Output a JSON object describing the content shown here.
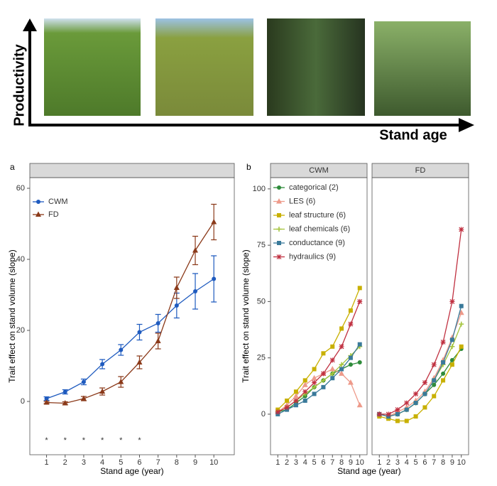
{
  "schematic": {
    "y_label": "Productivity",
    "x_label": "Stand age"
  },
  "chart_data": [
    {
      "type": "line",
      "panel": "a",
      "y_label": "Trait effect on stand volume (slope)",
      "x_label": "Stand age (year)",
      "x": [
        1,
        2,
        3,
        4,
        5,
        6,
        7,
        8,
        9,
        10
      ],
      "xlim": [
        0.1,
        11.1
      ],
      "xticks": [
        1,
        2,
        3,
        4,
        5,
        6,
        7,
        8,
        9,
        10
      ],
      "ylim": [
        -15,
        63
      ],
      "yticks": [
        0,
        20,
        40,
        60
      ],
      "legend": "top-left",
      "significance": [
        "*",
        "*",
        "*",
        "*",
        "*",
        "*",
        null,
        null,
        null,
        null
      ],
      "series": [
        {
          "name": "CWM",
          "color": "#1f5bbf",
          "marker": "circle",
          "values": [
            0.8,
            2.7,
            5.5,
            10.5,
            14.5,
            19.5,
            22,
            27,
            31,
            34.5
          ],
          "errors": [
            0.5,
            0.6,
            0.8,
            1.3,
            1.5,
            2.2,
            2.5,
            3.5,
            5,
            6.5
          ]
        },
        {
          "name": "FD",
          "color": "#8b3a1a",
          "marker": "triangle",
          "values": [
            -0.3,
            -0.5,
            0.8,
            2.8,
            5.5,
            11,
            17,
            32,
            42.5,
            50.5
          ],
          "errors": [
            0.3,
            0.4,
            0.6,
            1,
            1.5,
            1.8,
            2.2,
            3,
            4,
            5
          ]
        }
      ]
    },
    {
      "type": "line",
      "panel": "b",
      "facet": "CWM",
      "y_label": "Trait effect on stand volume (slope)",
      "x_label": "Stand age (year)",
      "x": [
        1,
        2,
        3,
        4,
        5,
        6,
        7,
        8,
        9,
        10
      ],
      "xlim": [
        0.2,
        10.8
      ],
      "xticks": [
        1,
        2,
        3,
        4,
        5,
        6,
        7,
        8,
        9,
        10
      ],
      "ylim": [
        -18,
        105
      ],
      "yticks": [
        0,
        25,
        50,
        75,
        100
      ],
      "legend": "top-left",
      "series": [
        {
          "name": "categorical (2)",
          "color": "#2e8b3a",
          "marker": "circle",
          "values": [
            1,
            2,
            5,
            8,
            12,
            15,
            18,
            20,
            22,
            23
          ]
        },
        {
          "name": "LES (6)",
          "color": "#ee9a8a",
          "marker": "triangle",
          "values": [
            1,
            4,
            8,
            13,
            16,
            18,
            20,
            18,
            14,
            4
          ]
        },
        {
          "name": "leaf structure (6)",
          "color": "#c8b000",
          "marker": "square",
          "values": [
            2,
            6,
            10,
            15,
            20,
            27,
            30,
            38,
            46,
            56
          ]
        },
        {
          "name": "leaf chemicals (6)",
          "color": "#a4c43c",
          "marker": "plus",
          "values": [
            1,
            3,
            6,
            9,
            12,
            15,
            18,
            22,
            26,
            30
          ]
        },
        {
          "name": "conductance (9)",
          "color": "#3a7a9a",
          "marker": "square",
          "values": [
            0,
            2,
            4,
            6,
            9,
            12,
            16,
            20,
            25,
            31
          ]
        },
        {
          "name": "hydraulics (9)",
          "color": "#c03040",
          "marker": "star",
          "values": [
            1,
            3,
            6,
            10,
            14,
            18,
            24,
            30,
            40,
            50
          ]
        }
      ]
    },
    {
      "type": "line",
      "facet": "FD",
      "x": [
        1,
        2,
        3,
        4,
        5,
        6,
        7,
        8,
        9,
        10
      ],
      "xlim": [
        0.2,
        10.8
      ],
      "xticks": [
        1,
        2,
        3,
        4,
        5,
        6,
        7,
        8,
        9,
        10
      ],
      "ylim": [
        -18,
        105
      ],
      "series": [
        {
          "color": "#2e8b3a",
          "marker": "circle",
          "values": [
            0,
            -1,
            0,
            2,
            5,
            9,
            13,
            18,
            24,
            29
          ]
        },
        {
          "color": "#ee9a8a",
          "marker": "triangle",
          "values": [
            0,
            -1,
            1,
            3,
            6,
            10,
            16,
            24,
            34,
            45
          ]
        },
        {
          "color": "#c8b000",
          "marker": "square",
          "values": [
            -1,
            -2,
            -3,
            -3,
            -1,
            3,
            8,
            15,
            22,
            30
          ]
        },
        {
          "color": "#a4c43c",
          "marker": "plus",
          "values": [
            0,
            -1,
            0,
            2,
            5,
            9,
            15,
            22,
            30,
            40
          ]
        },
        {
          "color": "#3a7a9a",
          "marker": "square",
          "values": [
            0,
            -1,
            0,
            2,
            5,
            9,
            15,
            23,
            33,
            48
          ]
        },
        {
          "color": "#c03040",
          "marker": "star",
          "values": [
            0,
            0,
            2,
            5,
            9,
            14,
            22,
            32,
            50,
            82
          ]
        }
      ]
    }
  ]
}
